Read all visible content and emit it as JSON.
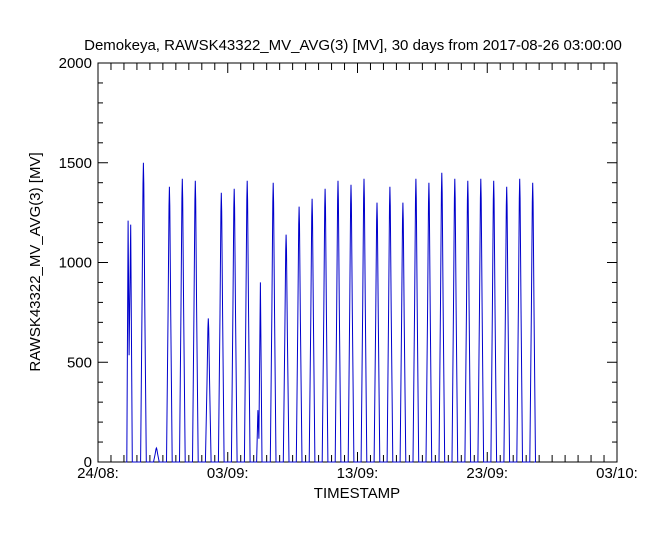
{
  "chart_data": {
    "type": "line",
    "title": "Demokeya, RAWSK43322_MV_AVG(3) [MV], 30 days from  2017-08-26 03:00:00",
    "xlabel": "TIMESTAMP",
    "ylabel": "RAWSK43322_MV_AVG(3) [MV]",
    "ylim": [
      0,
      2000
    ],
    "yticks": [
      0,
      500,
      1000,
      1500,
      2000
    ],
    "ytick_labels": [
      "0",
      "500",
      "1000",
      "1500",
      "2000"
    ],
    "xlim": [
      "2017-08-24",
      "2017-10-03"
    ],
    "xticks": [
      "2017-08-24",
      "2017-09-03",
      "2017-09-13",
      "2017-09-23",
      "2017-10-03"
    ],
    "xtick_labels": [
      "24/08:",
      "03/09:",
      "13/09:",
      "23/09:",
      "03/10:"
    ],
    "grid": false,
    "color": "#0000cc",
    "series": [
      {
        "daily_peaks": [
          {
            "date": "2017-08-26",
            "peaks": [
              1210,
              1190
            ]
          },
          {
            "date": "2017-08-27",
            "peaks": [
              1500
            ]
          },
          {
            "date": "2017-08-28",
            "peaks": [
              70
            ]
          },
          {
            "date": "2017-08-29",
            "peaks": [
              1380
            ]
          },
          {
            "date": "2017-08-30",
            "peaks": [
              1420
            ]
          },
          {
            "date": "2017-08-31",
            "peaks": [
              1410
            ]
          },
          {
            "date": "2017-09-01",
            "peaks": [
              720
            ]
          },
          {
            "date": "2017-09-02",
            "peaks": [
              1350
            ]
          },
          {
            "date": "2017-09-03",
            "peaks": [
              1370
            ]
          },
          {
            "date": "2017-09-04",
            "peaks": [
              1410
            ]
          },
          {
            "date": "2017-09-05",
            "peaks": [
              260,
              900
            ]
          },
          {
            "date": "2017-09-06",
            "peaks": [
              1400
            ]
          },
          {
            "date": "2017-09-07",
            "peaks": [
              1140
            ]
          },
          {
            "date": "2017-09-08",
            "peaks": [
              1280
            ]
          },
          {
            "date": "2017-09-09",
            "peaks": [
              1320
            ]
          },
          {
            "date": "2017-09-10",
            "peaks": [
              1370
            ]
          },
          {
            "date": "2017-09-11",
            "peaks": [
              1410
            ]
          },
          {
            "date": "2017-09-12",
            "peaks": [
              1390
            ]
          },
          {
            "date": "2017-09-13",
            "peaks": [
              1420
            ]
          },
          {
            "date": "2017-09-14",
            "peaks": [
              1300
            ]
          },
          {
            "date": "2017-09-15",
            "peaks": [
              1380
            ]
          },
          {
            "date": "2017-09-16",
            "peaks": [
              1300
            ]
          },
          {
            "date": "2017-09-17",
            "peaks": [
              1420
            ]
          },
          {
            "date": "2017-09-18",
            "peaks": [
              1400
            ]
          },
          {
            "date": "2017-09-19",
            "peaks": [
              1450
            ]
          },
          {
            "date": "2017-09-20",
            "peaks": [
              1420
            ]
          },
          {
            "date": "2017-09-21",
            "peaks": [
              1410
            ]
          },
          {
            "date": "2017-09-22",
            "peaks": [
              1420
            ]
          },
          {
            "date": "2017-09-23",
            "peaks": [
              1410
            ]
          },
          {
            "date": "2017-09-24",
            "peaks": [
              1380
            ]
          },
          {
            "date": "2017-09-25",
            "peaks": [
              1420
            ]
          },
          {
            "date": "2017-09-26",
            "peaks": [
              1400
            ]
          }
        ]
      }
    ]
  }
}
